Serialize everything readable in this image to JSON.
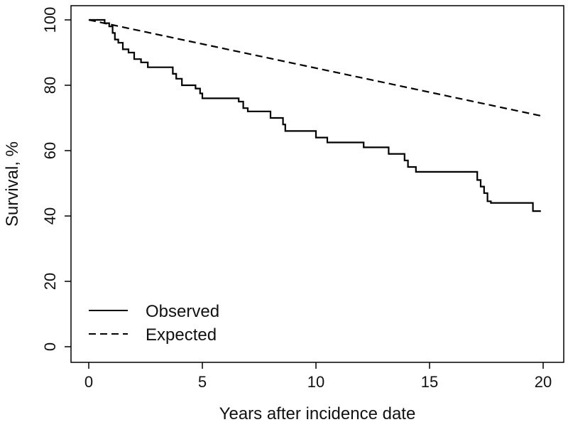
{
  "chart_data": {
    "type": "line",
    "title": "",
    "xlabel": "Years after incidence date",
    "ylabel": "Survival, %",
    "xlim": [
      0,
      20
    ],
    "ylim": [
      0,
      100
    ],
    "x_ticks": [
      0,
      5,
      10,
      15,
      20
    ],
    "y_ticks": [
      0,
      20,
      40,
      60,
      80,
      100
    ],
    "grid": false,
    "legend_position": "bottom-left",
    "series": [
      {
        "name": "Observed",
        "style": "solid-step",
        "color": "#000000",
        "x": [
          0,
          0.7,
          0.9,
          1.05,
          1.15,
          1.3,
          1.5,
          1.75,
          2.0,
          2.3,
          2.6,
          3.0,
          3.7,
          3.85,
          4.1,
          4.7,
          4.9,
          5.0,
          6.6,
          6.8,
          7.0,
          7.5,
          8.0,
          8.55,
          8.65,
          10.0,
          10.5,
          12.1,
          13.2,
          13.9,
          14.05,
          14.4,
          17.1,
          17.25,
          17.4,
          17.55,
          17.7,
          19.55,
          19.9
        ],
        "y": [
          100,
          99,
          98,
          96,
          94,
          93,
          91,
          90,
          88,
          87,
          85.5,
          85.5,
          83.5,
          82,
          80,
          79,
          77.5,
          76,
          75,
          73,
          72,
          72,
          70,
          68,
          66,
          64,
          62.5,
          61,
          59,
          57,
          55,
          53.5,
          51,
          49,
          47,
          44.5,
          44,
          41.5,
          41.5
        ]
      },
      {
        "name": "Expected",
        "style": "dashed",
        "color": "#000000",
        "x": [
          0,
          20
        ],
        "y": [
          100,
          70.5
        ]
      }
    ],
    "legend": [
      {
        "label": "Observed",
        "style": "solid"
      },
      {
        "label": "Expected",
        "style": "dashed"
      }
    ]
  }
}
